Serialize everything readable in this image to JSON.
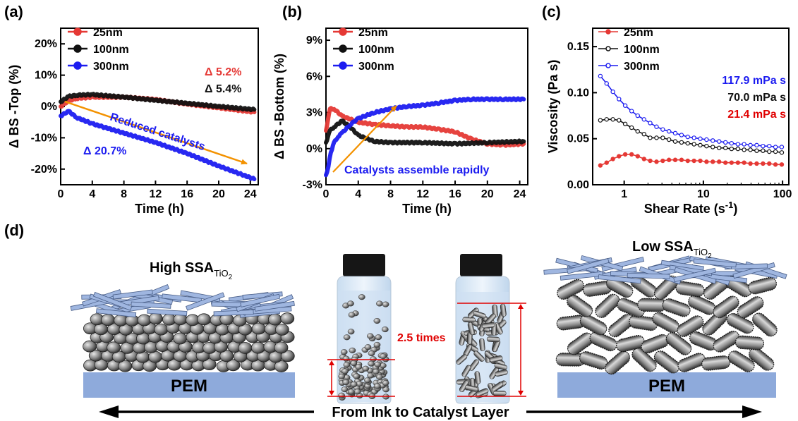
{
  "panel_labels": [
    "(a)",
    "(b)",
    "(c)",
    "(d)"
  ],
  "colors": {
    "s25": "#e53935",
    "s100": "#111111",
    "s300": "#1c1cf0",
    "arrow": "#f39200",
    "catalyst": "#9fb6e0",
    "pem": "#8eaadb",
    "red": "#e00000"
  },
  "chart_data": [
    {
      "id": "a",
      "type": "line",
      "xlabel": "Time (h)",
      "ylabel": "Δ BS -Top (%)",
      "xlim": [
        0,
        25
      ],
      "ylim": [
        -25,
        25
      ],
      "xticks": [
        0,
        4,
        8,
        12,
        16,
        20,
        24
      ],
      "yticks": [
        -20,
        -10,
        0,
        10,
        20
      ],
      "ytick_labels": [
        "-20%",
        "-10%",
        "0%",
        "10%",
        "20%"
      ],
      "legend": "top-left",
      "series": [
        {
          "name": "25nm",
          "color": "#e53935",
          "x": [
            0,
            1,
            2,
            4,
            8,
            12,
            16,
            20,
            24.5
          ],
          "y": [
            0,
            1.8,
            2.6,
            3.0,
            3.0,
            2.2,
            0.8,
            -0.4,
            -1.8
          ]
        },
        {
          "name": "100nm",
          "color": "#111111",
          "x": [
            0,
            1,
            2,
            4,
            8,
            12,
            16,
            20,
            24.5
          ],
          "y": [
            1.5,
            3.2,
            3.6,
            3.8,
            3.0,
            2.0,
            1.0,
            0.0,
            -1.0
          ]
        },
        {
          "name": "300nm",
          "color": "#1c1cf0",
          "x": [
            0,
            1,
            2,
            4,
            8,
            12,
            16,
            20,
            24.5
          ],
          "y": [
            -3.0,
            -1.5,
            -3.5,
            -5.5,
            -8.5,
            -11.5,
            -15.0,
            -19.0,
            -23.2
          ]
        }
      ],
      "annotations": [
        {
          "text": "Δ 5.2%",
          "color": "#e53935"
        },
        {
          "text": "Δ 5.4%",
          "color": "#111111"
        },
        {
          "text": "Reduced catalysts",
          "color": "#1c1cf0"
        },
        {
          "text": "Δ 20.7%",
          "color": "#1c1cf0"
        }
      ]
    },
    {
      "id": "b",
      "type": "line",
      "xlabel": "Time (h)",
      "ylabel": "Δ BS -Bottom (%)",
      "xlim": [
        0,
        25
      ],
      "ylim": [
        -3,
        10
      ],
      "xticks": [
        0,
        4,
        8,
        12,
        16,
        20,
        24
      ],
      "yticks": [
        -3,
        0,
        3,
        6,
        9
      ],
      "ytick_labels": [
        "-3%",
        "0%",
        "3%",
        "6%",
        "9%"
      ],
      "legend": "top-left",
      "series": [
        {
          "name": "25nm",
          "color": "#e53935",
          "x": [
            0,
            0.5,
            1,
            2,
            4,
            6,
            8,
            10,
            12,
            14,
            16,
            18,
            20,
            22,
            24.5
          ],
          "y": [
            1.5,
            3.3,
            3.3,
            2.7,
            2.2,
            2.0,
            1.9,
            1.8,
            1.8,
            1.6,
            1.4,
            0.8,
            0.4,
            0.3,
            0.4
          ]
        },
        {
          "name": "100nm",
          "color": "#111111",
          "x": [
            0,
            0.5,
            1,
            2,
            3,
            4,
            6,
            8,
            12,
            16,
            20,
            24.5
          ],
          "y": [
            0.5,
            1.5,
            1.8,
            2.3,
            1.8,
            1.1,
            0.6,
            0.5,
            0.5,
            0.4,
            0.5,
            0.6
          ]
        },
        {
          "name": "300nm",
          "color": "#1c1cf0",
          "x": [
            0,
            0.3,
            0.6,
            1,
            1.5,
            2,
            3,
            4,
            6,
            8,
            10,
            12,
            14,
            16,
            18,
            20,
            22,
            24.5
          ],
          "y": [
            -2.2,
            -1.5,
            -0.3,
            0.5,
            1.0,
            1.3,
            2.0,
            2.5,
            3.0,
            3.3,
            3.5,
            3.6,
            3.8,
            4.0,
            4.1,
            4.1,
            4.1,
            4.1
          ]
        }
      ],
      "annotations": [
        {
          "text": "Catalysts assemble rapidly",
          "color": "#1c1cf0"
        }
      ]
    },
    {
      "id": "c",
      "type": "line",
      "xlabel": "Shear Rate (s",
      "xlabel_sup": "-1",
      "xlabel_end": ")",
      "ylabel": "Viscosity (Pa s)",
      "xscale": "log",
      "xlim": [
        0.4,
        120
      ],
      "ylim": [
        0,
        0.17
      ],
      "xticks": [
        1,
        10,
        100
      ],
      "yticks": [
        0,
        0.05,
        0.1,
        0.15
      ],
      "ytick_labels": [
        "0.00",
        "0.05",
        "0.10",
        "0.15"
      ],
      "legend": "top-left",
      "series": [
        {
          "name": "25nm",
          "color": "#e53935",
          "x": [
            0.5,
            0.6,
            0.72,
            0.86,
            1.03,
            1.24,
            1.48,
            1.78,
            2.13,
            2.56,
            3.07,
            3.68,
            4.41,
            5.3,
            6.35,
            7.62,
            9.14,
            10.96,
            13.15,
            15.8,
            19,
            22.7,
            27.3,
            32.7,
            39.3,
            47.1,
            56.6,
            67.9,
            81.4,
            97.7
          ],
          "y": [
            0.021,
            0.024,
            0.028,
            0.031,
            0.033,
            0.033,
            0.031,
            0.028,
            0.026,
            0.025,
            0.026,
            0.027,
            0.027,
            0.027,
            0.026,
            0.026,
            0.026,
            0.025,
            0.025,
            0.025,
            0.024,
            0.024,
            0.024,
            0.024,
            0.023,
            0.023,
            0.023,
            0.023,
            0.022,
            0.022
          ]
        },
        {
          "name": "100nm",
          "color": "#111111",
          "x": [
            0.5,
            0.6,
            0.72,
            0.86,
            1.03,
            1.24,
            1.48,
            1.78,
            2.13,
            2.56,
            3.07,
            3.68,
            4.41,
            5.3,
            6.35,
            7.62,
            9.14,
            10.96,
            13.15,
            15.8,
            19,
            22.7,
            27.3,
            32.7,
            39.3,
            47.1,
            56.6,
            67.9,
            81.4,
            97.7
          ],
          "y": [
            0.07,
            0.071,
            0.071,
            0.07,
            0.066,
            0.062,
            0.058,
            0.055,
            0.051,
            0.051,
            0.051,
            0.049,
            0.047,
            0.046,
            0.045,
            0.044,
            0.043,
            0.042,
            0.041,
            0.04,
            0.04,
            0.039,
            0.039,
            0.038,
            0.038,
            0.037,
            0.037,
            0.036,
            0.036,
            0.035
          ]
        },
        {
          "name": "300nm",
          "color": "#1c1cf0",
          "x": [
            0.5,
            0.6,
            0.72,
            0.86,
            1.03,
            1.24,
            1.48,
            1.78,
            2.13,
            2.56,
            3.07,
            3.68,
            4.41,
            5.3,
            6.35,
            7.62,
            9.14,
            10.96,
            13.15,
            15.8,
            19,
            22.7,
            27.3,
            32.7,
            39.3,
            47.1,
            56.6,
            67.9,
            81.4,
            97.7
          ],
          "y": [
            0.118,
            0.11,
            0.101,
            0.093,
            0.086,
            0.08,
            0.075,
            0.071,
            0.067,
            0.063,
            0.06,
            0.058,
            0.056,
            0.054,
            0.052,
            0.051,
            0.05,
            0.049,
            0.048,
            0.047,
            0.046,
            0.045,
            0.044,
            0.044,
            0.043,
            0.043,
            0.042,
            0.042,
            0.041,
            0.041
          ]
        }
      ],
      "annotations": [
        {
          "text": "117.9 mPa s",
          "color": "#1c1cf0"
        },
        {
          "text": "70.0 mPa s",
          "color": "#111111"
        },
        {
          "text": "21.4 mPa s",
          "color": "#e00000"
        }
      ]
    }
  ],
  "schematic": {
    "high_ssa": "High SSA",
    "low_ssa": "Low SSA",
    "ssa_sub": "TiO",
    "ssa_sub2": "2",
    "pem": "PEM",
    "times": "2.5 times",
    "bottom_arrow": "From Ink to Catalyst Layer"
  }
}
